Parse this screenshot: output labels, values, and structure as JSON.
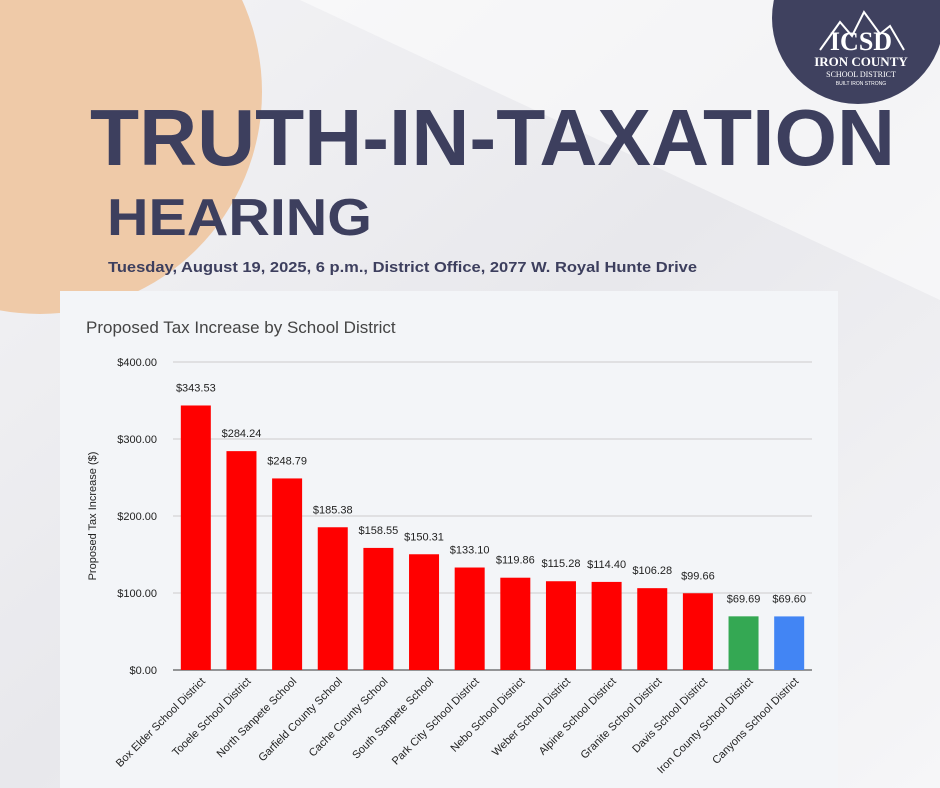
{
  "header": {
    "title": "TRUTH-IN-TAXATION",
    "subtitle": "HEARING",
    "details": "Tuesday, August 19, 2025, 6 p.m., District Office, 2077 W. Royal Hunte Drive"
  },
  "logo": {
    "initials": "ICSD",
    "name": "IRON COUNTY",
    "district": "SCHOOL DISTRICT",
    "motto": "BUILT IRON STRONG"
  },
  "chart_data": {
    "type": "bar",
    "title": "Proposed Tax Increase by School District",
    "ylabel": "Proposed Tax Increase ($)",
    "categories": [
      "Box Elder School District",
      "Tooele School District",
      "North Sanpete School",
      "Garfield County School",
      "Cache County School",
      "South Sanpete School",
      "Park City School District",
      "Nebo School District",
      "Weber School District",
      "Alpine School District",
      "Granite School District",
      "Davis School District",
      "Iron County School District",
      "Canyons School District"
    ],
    "values": [
      343.53,
      284.24,
      248.79,
      185.38,
      158.55,
      150.31,
      133.1,
      119.86,
      115.28,
      114.4,
      106.28,
      99.66,
      69.69,
      69.6
    ],
    "value_labels": [
      "$343.53",
      "$284.24",
      "$248.79",
      "$185.38",
      "$158.55",
      "$150.31",
      "$133.10",
      "$119.86",
      "$115.28",
      "$114.40",
      "$106.28",
      "$99.66",
      "$69.69",
      "$69.60"
    ],
    "colors": [
      "#ff0000",
      "#ff0000",
      "#ff0000",
      "#ff0000",
      "#ff0000",
      "#ff0000",
      "#ff0000",
      "#ff0000",
      "#ff0000",
      "#ff0000",
      "#ff0000",
      "#ff0000",
      "#34a853",
      "#4285f4"
    ],
    "ylim": [
      0,
      400
    ],
    "yticks": [
      {
        "value": 0,
        "label": "$0.00"
      },
      {
        "value": 100,
        "label": "$100.00"
      },
      {
        "value": 200,
        "label": "$200.00"
      },
      {
        "value": 300,
        "label": "$300.00"
      },
      {
        "value": 400,
        "label": "$400.00"
      }
    ],
    "grid": true
  }
}
